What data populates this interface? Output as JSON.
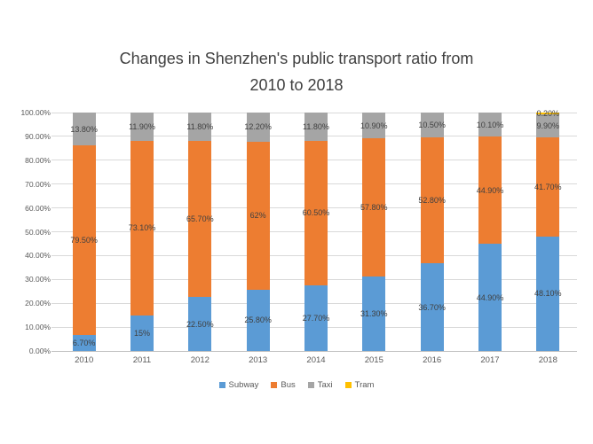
{
  "chart_data": {
    "type": "bar",
    "stacked": true,
    "title": "Changes in Shenzhen's public transport ratio from 2010 to 2018",
    "title_lines": [
      "Changes in Shenzhen's public transport ratio from",
      "2010 to 2018"
    ],
    "categories": [
      "2010",
      "2011",
      "2012",
      "2013",
      "2014",
      "2015",
      "2016",
      "2017",
      "2018"
    ],
    "series": [
      {
        "name": "Subway",
        "color": "#5B9BD5",
        "values": [
          6.7,
          15,
          22.5,
          25.8,
          27.7,
          31.3,
          36.7,
          44.9,
          48.1
        ],
        "labels": [
          "6.70%",
          "15%",
          "22.50%",
          "25.80%",
          "27.70%",
          "31.30%",
          "36.70%",
          "44.90%",
          "48.10%"
        ]
      },
      {
        "name": "Bus",
        "color": "#ED7D31",
        "values": [
          79.5,
          73.1,
          65.7,
          62,
          60.5,
          57.8,
          52.8,
          44.9,
          41.7
        ],
        "labels": [
          "79.50%",
          "73.10%",
          "65.70%",
          "62%",
          "60.50%",
          "57.80%",
          "52.80%",
          "44.90%",
          "41.70%"
        ]
      },
      {
        "name": "Taxi",
        "color": "#A5A5A5",
        "values": [
          13.8,
          11.9,
          11.8,
          12.2,
          11.8,
          10.9,
          10.5,
          10.1,
          9.9
        ],
        "labels": [
          "13.80%",
          "11.90%",
          "11.80%",
          "12.20%",
          "11.80%",
          "10.90%",
          "10.50%",
          "10.10%",
          "9.90%"
        ]
      },
      {
        "name": "Tram",
        "color": "#FFC000",
        "values": [
          0,
          0,
          0,
          0,
          0,
          0,
          0,
          0,
          0.2
        ],
        "labels": [
          "",
          "",
          "",
          "",
          "",
          "",
          "",
          "",
          "0.20%"
        ]
      }
    ],
    "y_axis": {
      "min": 0,
      "max": 100,
      "step": 10,
      "ticks": [
        "100.00%",
        "90.00%",
        "80.00%",
        "70.00%",
        "60.00%",
        "50.00%",
        "40.00%",
        "30.00%",
        "20.00%",
        "10.00%",
        "0.00%"
      ]
    },
    "legend": {
      "position": "bottom",
      "entries": [
        "Subway",
        "Bus",
        "Taxi",
        "Tram"
      ]
    },
    "grid": true,
    "colors": {
      "gridline": "#D9D9D9",
      "axis_line": "#BFBFBF",
      "title_text": "#404040",
      "axis_text": "#595959",
      "data_label_text": "#404040",
      "background": "#FFFFFF"
    }
  }
}
